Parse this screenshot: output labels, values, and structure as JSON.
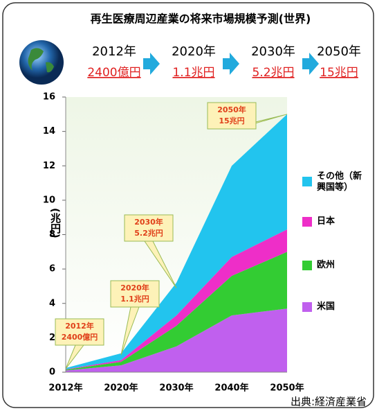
{
  "chart_data": {
    "type": "area",
    "title": "再生医療周辺産業の将来市場規模予測(世界)",
    "header": {
      "years": [
        "2012年",
        "2020年",
        "2030年",
        "2050年"
      ],
      "values": [
        "2400億円",
        "1.1兆円",
        "5.2兆円",
        "15兆円"
      ]
    },
    "categories": [
      "2012年",
      "2020年",
      "2030年",
      "2040年",
      "2050年"
    ],
    "series": [
      {
        "name": "米国",
        "color": "#c060ee",
        "values": [
          0.1,
          0.4,
          1.5,
          3.3,
          3.7
        ]
      },
      {
        "name": "欧州",
        "color": "#33cc33",
        "values": [
          0.05,
          0.2,
          1.2,
          2.3,
          3.3
        ]
      },
      {
        "name": "日本",
        "color": "#ee2ec8",
        "values": [
          0.02,
          0.1,
          0.6,
          1.1,
          1.3
        ]
      },
      {
        "name": "その他（新興国等）",
        "color": "#22c4ee",
        "values": [
          0.07,
          0.4,
          1.9,
          5.3,
          6.7
        ]
      }
    ],
    "ylim": [
      0,
      16
    ],
    "yticks": [
      0,
      2,
      4,
      6,
      8,
      10,
      12,
      14,
      16
    ],
    "ylabel": "(兆円)",
    "annotations": [
      [
        "2012年",
        "2400億円"
      ],
      [
        "2020年",
        "1.1兆円"
      ],
      [
        "2030年",
        "5.2兆円"
      ],
      [
        "2050年",
        "15兆円"
      ]
    ],
    "source": "出典:経済産業省"
  }
}
